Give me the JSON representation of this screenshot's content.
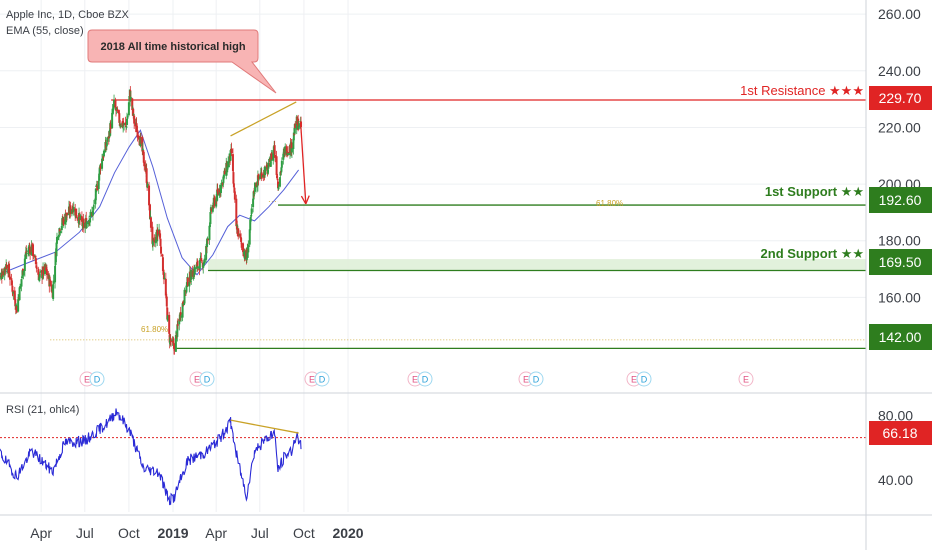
{
  "header": {
    "symbol_line": "Apple Inc, 1D, Cboe BZX",
    "ema_label": "EMA (55, close)",
    "rsi_label": "RSI (21, ohlc4)"
  },
  "callout": {
    "text": "2018 All time historical high"
  },
  "annotations": {
    "resistance": {
      "label": "1st Resistance ★★★",
      "price": "229.70",
      "color": "#e02424"
    },
    "support1": {
      "label": "1st Support ★★",
      "price": "192.60",
      "color": "#2e7d1e"
    },
    "support2": {
      "label": "2nd Support ★★",
      "price": "169.50",
      "color": "#2e7d1e"
    },
    "support3": {
      "price": "142.00",
      "color": "#2e7d1e"
    },
    "fib_left": "61.80%",
    "fib_right": "61.80%",
    "rsi_current": "66.18"
  },
  "event_markers": [
    {
      "e": "E",
      "d": "D"
    },
    {
      "e": "E",
      "d": "D"
    },
    {
      "e": "E",
      "d": "D"
    },
    {
      "e": "E",
      "d": "D"
    },
    {
      "e": "E",
      "d": "D"
    },
    {
      "e": "E",
      "d": "D"
    },
    {
      "e": "E",
      "d": ""
    }
  ],
  "colors": {
    "up": "#26a69a",
    "down": "#ef5350",
    "candle_up": "#2f9e44",
    "candle_down": "#d32f2f",
    "ema": "#5560d8",
    "rsi": "#2a2ad6",
    "trend": "#c9a227",
    "grid": "#eef0f3"
  },
  "chart_data": [
    {
      "type": "candlestick",
      "title": "Apple Inc, 1D, Cboe BZX",
      "overlay_series": "EMA (55, close)",
      "x_tick_labels": [
        "Apr",
        "Jul",
        "Oct",
        "2019",
        "Apr",
        "Jul",
        "Oct",
        "2020"
      ],
      "x_tick_dates": [
        "2018-04-01",
        "2018-07-01",
        "2018-10-01",
        "2019-01-01",
        "2019-04-01",
        "2019-07-01",
        "2019-10-01",
        "2020-01-01"
      ],
      "y_tick_labels": [
        "260.00",
        "240.00",
        "220.00",
        "200.00",
        "180.00",
        "160.00"
      ],
      "ylim": [
        128,
        265
      ],
      "horizontal_levels": [
        229.7,
        192.6,
        169.5,
        142.0
      ],
      "close_path": [
        [
          "2018-01-02",
          166
        ],
        [
          "2018-01-20",
          172
        ],
        [
          "2018-02-09",
          156
        ],
        [
          "2018-02-27",
          175
        ],
        [
          "2018-03-12",
          178
        ],
        [
          "2018-03-28",
          167
        ],
        [
          "2018-04-10",
          170
        ],
        [
          "2018-04-25",
          162
        ],
        [
          "2018-05-05",
          183
        ],
        [
          "2018-05-20",
          188
        ],
        [
          "2018-06-06",
          192
        ],
        [
          "2018-06-28",
          185
        ],
        [
          "2018-07-18",
          190
        ],
        [
          "2018-08-03",
          207
        ],
        [
          "2018-08-20",
          217
        ],
        [
          "2018-08-31",
          228
        ],
        [
          "2018-09-12",
          222
        ],
        [
          "2018-09-25",
          220
        ],
        [
          "2018-10-03",
          232
        ],
        [
          "2018-10-12",
          222
        ],
        [
          "2018-10-24",
          216
        ],
        [
          "2018-11-06",
          204
        ],
        [
          "2018-11-20",
          178
        ],
        [
          "2018-12-03",
          184
        ],
        [
          "2018-12-14",
          166
        ],
        [
          "2018-12-24",
          146
        ],
        [
          "2019-01-03",
          142
        ],
        [
          "2019-01-15",
          153
        ],
        [
          "2019-02-01",
          166
        ],
        [
          "2019-02-20",
          171
        ],
        [
          "2019-03-08",
          173
        ],
        [
          "2019-03-22",
          191
        ],
        [
          "2019-04-10",
          199
        ],
        [
          "2019-04-25",
          207
        ],
        [
          "2019-05-03",
          211
        ],
        [
          "2019-05-13",
          185
        ],
        [
          "2019-05-22",
          180
        ],
        [
          "2019-06-03",
          173
        ],
        [
          "2019-06-20",
          199
        ],
        [
          "2019-07-05",
          204
        ],
        [
          "2019-07-18",
          205
        ],
        [
          "2019-07-31",
          213
        ],
        [
          "2019-08-08",
          200
        ],
        [
          "2019-08-22",
          212
        ],
        [
          "2019-09-05",
          213
        ],
        [
          "2019-09-15",
          222
        ],
        [
          "2019-09-25",
          220
        ]
      ],
      "ema_path": [
        [
          "2018-01-02",
          168
        ],
        [
          "2018-03-01",
          172
        ],
        [
          "2018-05-01",
          176
        ],
        [
          "2018-06-20",
          183
        ],
        [
          "2018-08-01",
          192
        ],
        [
          "2018-09-01",
          204
        ],
        [
          "2018-10-01",
          213
        ],
        [
          "2018-10-25",
          219
        ],
        [
          "2018-11-20",
          206
        ],
        [
          "2018-12-20",
          188
        ],
        [
          "2019-01-20",
          174
        ],
        [
          "2019-02-20",
          168
        ],
        [
          "2019-03-25",
          175
        ],
        [
          "2019-04-25",
          185
        ],
        [
          "2019-05-20",
          189
        ],
        [
          "2019-06-20",
          187
        ],
        [
          "2019-07-20",
          192
        ],
        [
          "2019-08-20",
          198
        ],
        [
          "2019-09-20",
          205
        ]
      ],
      "trendline": [
        [
          "2019-05-01",
          217
        ],
        [
          "2019-09-15",
          229
        ]
      ],
      "projection_arrow": [
        [
          "2019-09-24",
          222
        ],
        [
          "2019-10-05",
          193
        ]
      ]
    },
    {
      "type": "line",
      "title": "RSI (21, ohlc4)",
      "y_tick_labels": [
        "80.00",
        "40.00"
      ],
      "ylim": [
        20,
        92
      ],
      "reference_level": 66.18,
      "series": [
        {
          "values_path": [
            [
              "2018-01-02",
              58
            ],
            [
              "2018-02-09",
              42
            ],
            [
              "2018-03-12",
              58
            ],
            [
              "2018-04-25",
              45
            ],
            [
              "2018-05-20",
              63
            ],
            [
              "2018-07-01",
              64
            ],
            [
              "2018-08-20",
              76
            ],
            [
              "2018-09-05",
              83
            ],
            [
              "2018-10-03",
              70
            ],
            [
              "2018-11-01",
              47
            ],
            [
              "2018-12-03",
              45
            ],
            [
              "2018-12-24",
              27
            ],
            [
              "2019-01-03",
              29
            ],
            [
              "2019-02-01",
              52
            ],
            [
              "2019-03-10",
              57
            ],
            [
              "2019-04-10",
              66
            ],
            [
              "2019-05-01",
              76
            ],
            [
              "2019-05-13",
              56
            ],
            [
              "2019-06-03",
              30
            ],
            [
              "2019-06-20",
              58
            ],
            [
              "2019-07-31",
              70
            ],
            [
              "2019-08-08",
              46
            ],
            [
              "2019-08-22",
              55
            ],
            [
              "2019-09-05",
              58
            ],
            [
              "2019-09-15",
              68
            ],
            [
              "2019-09-25",
              60
            ]
          ]
        }
      ],
      "trendline": [
        [
          "2019-05-01",
          77
        ],
        [
          "2019-09-20",
          69
        ]
      ]
    }
  ]
}
